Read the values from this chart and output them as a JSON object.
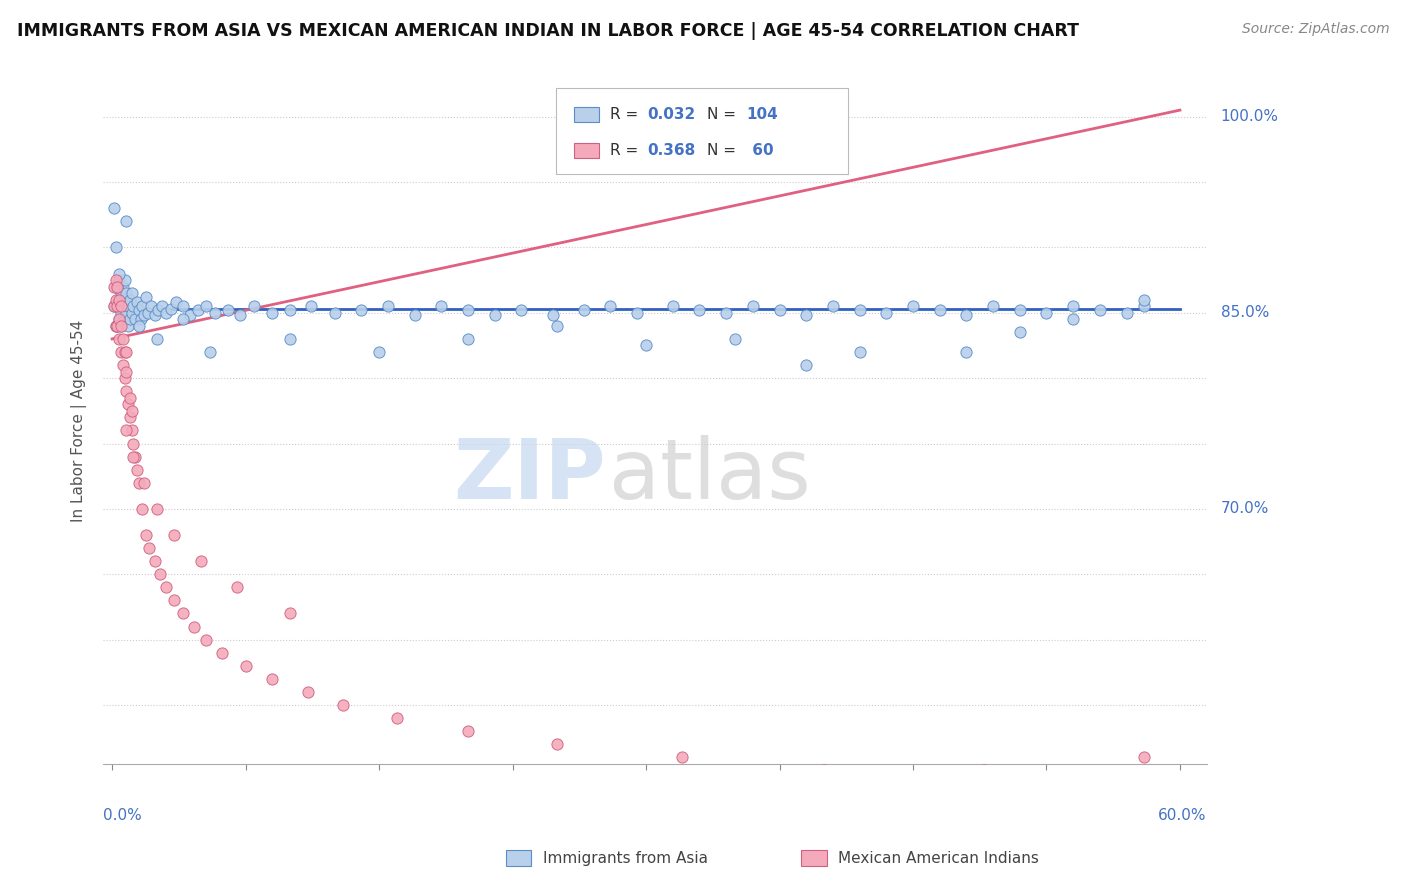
{
  "title": "IMMIGRANTS FROM ASIA VS MEXICAN AMERICAN INDIAN IN LABOR FORCE | AGE 45-54 CORRELATION CHART",
  "source": "Source: ZipAtlas.com",
  "ylabel": "In Labor Force | Age 45-54",
  "xlim": [
    0.0,
    0.6
  ],
  "ylim": [
    0.5,
    1.03
  ],
  "highlighted_yticks": {
    "0.70": "70.0%",
    "0.85": "85.0%",
    "1.00": "100.0%"
  },
  "all_yticks": [
    0.55,
    0.6,
    0.65,
    0.7,
    0.75,
    0.8,
    0.85,
    0.9,
    0.95,
    1.0
  ],
  "legend_r_asia": "0.032",
  "legend_n_asia": "104",
  "legend_r_mexican": "0.368",
  "legend_n_mexican": "60",
  "color_asia_fill": "#b8d0ea",
  "color_asia_edge": "#5b8dc8",
  "color_mexican_fill": "#f4aabb",
  "color_mexican_edge": "#d06080",
  "color_line_asia": "#3060c0",
  "color_line_mexican": "#e06080",
  "color_text_blue": "#4472c4",
  "color_grid": "#cccccc",
  "asia_x": [
    0.001,
    0.002,
    0.002,
    0.003,
    0.003,
    0.003,
    0.004,
    0.004,
    0.004,
    0.005,
    0.005,
    0.005,
    0.006,
    0.006,
    0.007,
    0.007,
    0.007,
    0.008,
    0.008,
    0.009,
    0.009,
    0.01,
    0.01,
    0.011,
    0.011,
    0.012,
    0.013,
    0.014,
    0.015,
    0.016,
    0.017,
    0.018,
    0.019,
    0.02,
    0.022,
    0.024,
    0.026,
    0.028,
    0.03,
    0.033,
    0.036,
    0.04,
    0.044,
    0.048,
    0.053,
    0.058,
    0.065,
    0.072,
    0.08,
    0.09,
    0.1,
    0.112,
    0.125,
    0.14,
    0.155,
    0.17,
    0.185,
    0.2,
    0.215,
    0.23,
    0.248,
    0.265,
    0.28,
    0.295,
    0.315,
    0.33,
    0.345,
    0.36,
    0.375,
    0.39,
    0.405,
    0.42,
    0.435,
    0.45,
    0.465,
    0.48,
    0.495,
    0.51,
    0.525,
    0.54,
    0.555,
    0.57,
    0.58,
    0.48,
    0.51,
    0.54,
    0.39,
    0.42,
    0.35,
    0.3,
    0.25,
    0.2,
    0.15,
    0.1,
    0.055,
    0.04,
    0.025,
    0.015,
    0.008,
    0.004,
    0.003,
    0.002,
    0.001,
    0.58
  ],
  "asia_y": [
    0.855,
    0.84,
    0.87,
    0.855,
    0.84,
    0.87,
    0.845,
    0.86,
    0.875,
    0.85,
    0.865,
    0.84,
    0.855,
    0.87,
    0.845,
    0.86,
    0.875,
    0.85,
    0.865,
    0.84,
    0.855,
    0.845,
    0.86,
    0.85,
    0.865,
    0.855,
    0.845,
    0.858,
    0.852,
    0.845,
    0.855,
    0.848,
    0.862,
    0.85,
    0.855,
    0.848,
    0.852,
    0.855,
    0.85,
    0.853,
    0.858,
    0.855,
    0.848,
    0.852,
    0.855,
    0.85,
    0.852,
    0.848,
    0.855,
    0.85,
    0.852,
    0.855,
    0.85,
    0.852,
    0.855,
    0.848,
    0.855,
    0.852,
    0.848,
    0.852,
    0.848,
    0.852,
    0.855,
    0.85,
    0.855,
    0.852,
    0.85,
    0.855,
    0.852,
    0.848,
    0.855,
    0.852,
    0.85,
    0.855,
    0.852,
    0.848,
    0.855,
    0.852,
    0.85,
    0.855,
    0.852,
    0.85,
    0.855,
    0.82,
    0.835,
    0.845,
    0.81,
    0.82,
    0.83,
    0.825,
    0.84,
    0.83,
    0.82,
    0.83,
    0.82,
    0.845,
    0.83,
    0.84,
    0.92,
    0.88,
    0.87,
    0.9,
    0.93,
    0.86
  ],
  "mexican_x": [
    0.001,
    0.001,
    0.002,
    0.002,
    0.002,
    0.003,
    0.003,
    0.003,
    0.004,
    0.004,
    0.004,
    0.005,
    0.005,
    0.005,
    0.006,
    0.006,
    0.007,
    0.007,
    0.008,
    0.008,
    0.008,
    0.009,
    0.01,
    0.01,
    0.011,
    0.011,
    0.012,
    0.013,
    0.014,
    0.015,
    0.017,
    0.019,
    0.021,
    0.024,
    0.027,
    0.03,
    0.035,
    0.04,
    0.046,
    0.053,
    0.062,
    0.075,
    0.09,
    0.11,
    0.13,
    0.16,
    0.2,
    0.25,
    0.32,
    0.4,
    0.49,
    0.58,
    0.008,
    0.012,
    0.018,
    0.025,
    0.035,
    0.05,
    0.07,
    0.1
  ],
  "mexican_y": [
    0.855,
    0.87,
    0.84,
    0.86,
    0.875,
    0.84,
    0.855,
    0.87,
    0.83,
    0.845,
    0.86,
    0.82,
    0.84,
    0.855,
    0.81,
    0.83,
    0.8,
    0.82,
    0.79,
    0.805,
    0.82,
    0.78,
    0.77,
    0.785,
    0.76,
    0.775,
    0.75,
    0.74,
    0.73,
    0.72,
    0.7,
    0.68,
    0.67,
    0.66,
    0.65,
    0.64,
    0.63,
    0.62,
    0.61,
    0.6,
    0.59,
    0.58,
    0.57,
    0.56,
    0.55,
    0.54,
    0.53,
    0.52,
    0.51,
    0.5,
    0.5,
    0.51,
    0.76,
    0.74,
    0.72,
    0.7,
    0.68,
    0.66,
    0.64,
    0.62
  ],
  "asia_trend_x": [
    0.0,
    0.6
  ],
  "asia_trend_y": [
    0.853,
    0.853
  ],
  "mexican_trend_x": [
    0.0,
    0.6
  ],
  "mexican_trend_y": [
    0.83,
    1.005
  ]
}
